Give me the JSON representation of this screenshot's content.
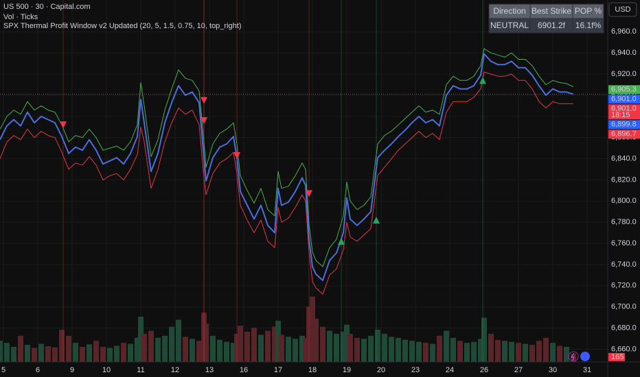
{
  "chart_data": {
    "type": "line",
    "title": "US 500 · 30 · Capital.com",
    "subtitle": "Vol · Ticks",
    "indicator": "SPX Thermal Profit Window v2 Updated (20, 5, 1.5, 0.75, 10, top_right)",
    "currency": "USD",
    "xlim": [
      -0.1,
      17.6
    ],
    "xticks": [
      {
        "value": 0,
        "label": "5"
      },
      {
        "value": 1,
        "label": "6"
      },
      {
        "value": 2,
        "label": "9"
      },
      {
        "value": 3,
        "label": "10"
      },
      {
        "value": 4,
        "label": "11"
      },
      {
        "value": 5,
        "label": "12"
      },
      {
        "value": 6,
        "label": "13"
      },
      {
        "value": 7,
        "label": "16"
      },
      {
        "value": 8,
        "label": "17"
      },
      {
        "value": 9,
        "label": "18"
      },
      {
        "value": 10,
        "label": "19"
      },
      {
        "value": 11,
        "label": "20"
      },
      {
        "value": 12,
        "label": "23"
      },
      {
        "value": 13,
        "label": "24"
      },
      {
        "value": 14,
        "label": "26"
      },
      {
        "value": 15,
        "label": "27"
      },
      {
        "value": 16,
        "label": "30"
      },
      {
        "value": 17,
        "label": "31"
      }
    ],
    "ylim": [
      6648,
      6990
    ],
    "yticks": [
      {
        "value": 6660,
        "label": "6,660.0"
      },
      {
        "value": 6680,
        "label": "6,680.0"
      },
      {
        "value": 6700,
        "label": "6,700.0"
      },
      {
        "value": 6720,
        "label": "6,720.0"
      },
      {
        "value": 6740,
        "label": "6,740.0"
      },
      {
        "value": 6760,
        "label": "6,760.0"
      },
      {
        "value": 6780,
        "label": "6,780.0"
      },
      {
        "value": 6800,
        "label": "6,800.0"
      },
      {
        "value": 6820,
        "label": "6,820.0"
      },
      {
        "value": 6840,
        "label": "6,840.0"
      },
      {
        "value": 6860,
        "label": "6,860.0"
      },
      {
        "value": 6880,
        "label": "6,880.0"
      },
      {
        "value": 6900,
        "label": "6,900.0"
      },
      {
        "value": 6920,
        "label": "6,920.0"
      },
      {
        "value": 6940,
        "label": "6,940.0"
      },
      {
        "value": 6960,
        "label": "6,960.0"
      }
    ],
    "grid": true,
    "x": [
      -0.1,
      0.1,
      0.3,
      0.5,
      0.7,
      0.9,
      1.1,
      1.3,
      1.5,
      1.7,
      1.9,
      2.1,
      2.3,
      2.5,
      2.7,
      2.9,
      3.1,
      3.3,
      3.5,
      3.7,
      3.9,
      4.0,
      4.1,
      4.3,
      4.5,
      4.7,
      4.9,
      5.1,
      5.3,
      5.5,
      5.7,
      5.84,
      5.9,
      6.1,
      6.3,
      6.5,
      6.7,
      6.8,
      6.9,
      7.1,
      7.3,
      7.5,
      7.7,
      7.9,
      8.0,
      8.1,
      8.3,
      8.5,
      8.7,
      8.8,
      8.9,
      9.0,
      9.1,
      9.3,
      9.5,
      9.7,
      9.9,
      10.0,
      10.1,
      10.3,
      10.5,
      10.7,
      10.9,
      11.1,
      11.3,
      11.5,
      11.7,
      11.9,
      12.1,
      12.3,
      12.5,
      12.7,
      12.9,
      13.1,
      13.3,
      13.5,
      13.7,
      13.9,
      14.0,
      14.2,
      14.4,
      14.6,
      14.8,
      15.0,
      15.2,
      15.4,
      15.6,
      15.8,
      16.0,
      16.2,
      16.4,
      16.6
    ],
    "series": [
      {
        "color": "#4caf50",
        "values": [
          6868,
          6880,
          6886,
          6882,
          6894,
          6886,
          6890,
          6886,
          6884,
          6872,
          6856,
          6862,
          6860,
          6868,
          6860,
          6848,
          6850,
          6852,
          6848,
          6856,
          6872,
          6912,
          6890,
          6842,
          6858,
          6886,
          6906,
          6924,
          6916,
          6914,
          6904,
          6856,
          6832,
          6854,
          6864,
          6868,
          6874,
          6854,
          6824,
          6810,
          6798,
          6812,
          6792,
          6786,
          6828,
          6812,
          6814,
          6824,
          6836,
          6830,
          6778,
          6752,
          6744,
          6738,
          6756,
          6764,
          6786,
          6818,
          6800,
          6792,
          6796,
          6804,
          6854,
          6862,
          6866,
          6872,
          6878,
          6884,
          6890,
          6884,
          6886,
          6882,
          6910,
          6918,
          6914,
          6914,
          6918,
          6928,
          6944,
          6940,
          6938,
          6936,
          6940,
          6934,
          6934,
          6928,
          6918,
          6910,
          6914,
          6912,
          6911,
          6908
        ]
      },
      {
        "color": "#e0394b",
        "values": [
          6840,
          6856,
          6862,
          6858,
          6868,
          6860,
          6866,
          6862,
          6860,
          6846,
          6830,
          6836,
          6834,
          6842,
          6834,
          6820,
          6824,
          6826,
          6820,
          6830,
          6844,
          6870,
          6856,
          6812,
          6830,
          6856,
          6874,
          6888,
          6882,
          6886,
          6872,
          6822,
          6806,
          6826,
          6836,
          6840,
          6846,
          6826,
          6796,
          6782,
          6770,
          6782,
          6762,
          6756,
          6794,
          6780,
          6784,
          6794,
          6806,
          6800,
          6752,
          6724,
          6718,
          6712,
          6730,
          6736,
          6754,
          6780,
          6766,
          6762,
          6768,
          6774,
          6824,
          6832,
          6840,
          6848,
          6854,
          6860,
          6866,
          6860,
          6864,
          6858,
          6884,
          6894,
          6894,
          6894,
          6898,
          6906,
          6922,
          6920,
          6918,
          6918,
          6920,
          6914,
          6914,
          6906,
          6894,
          6888,
          6894,
          6892,
          6892,
          6892
        ]
      },
      {
        "color": "#4a6fe0",
        "values": [
          6858,
          6871,
          6877,
          6871,
          6884,
          6874,
          6880,
          6877,
          6874,
          6861,
          6845,
          6851,
          6848,
          6858,
          6848,
          6835,
          6838,
          6841,
          6835,
          6845,
          6861,
          6896,
          6874,
          6828,
          6845,
          6874,
          6893,
          6909,
          6900,
          6903,
          6893,
          6841,
          6819,
          6841,
          6851,
          6854,
          6861,
          6841,
          6809,
          6796,
          6783,
          6796,
          6777,
          6770,
          6812,
          6796,
          6799,
          6809,
          6822,
          6815,
          6764,
          6738,
          6731,
          6725,
          6744,
          6751,
          6770,
          6803,
          6783,
          6777,
          6783,
          6790,
          6841,
          6848,
          6854,
          6861,
          6867,
          6874,
          6880,
          6874,
          6877,
          6871,
          6900,
          6909,
          6906,
          6906,
          6909,
          6919,
          6939,
          6932,
          6929,
          6929,
          6932,
          6926,
          6926,
          6919,
          6909,
          6900,
          6906,
          6903,
          6903,
          6901
        ]
      }
    ],
    "volume": {
      "lim": [
        0,
        1500
      ],
      "up_color": "#1f4a38",
      "down_color": "#5a2528",
      "values": [
        420,
        380,
        300,
        520,
        340,
        280,
        360,
        310,
        290,
        640,
        520,
        380,
        300,
        350,
        420,
        300,
        280,
        320,
        380,
        360,
        480,
        900,
        560,
        620,
        480,
        520,
        700,
        840,
        500,
        460,
        420,
        980,
        760,
        520,
        440,
        400,
        380,
        560,
        720,
        600,
        680,
        540,
        620,
        700,
        820,
        540,
        500,
        460,
        520,
        480,
        1100,
        1300,
        860,
        700,
        620,
        560,
        600,
        740,
        560,
        480,
        460,
        520,
        640,
        560,
        500,
        480,
        440,
        420,
        400,
        380,
        360,
        520,
        620,
        480,
        420,
        380,
        400,
        460,
        880,
        560,
        440,
        420,
        400,
        380,
        360,
        340,
        420,
        480,
        380,
        320,
        300,
        165
      ]
    },
    "sell_signals": {
      "color": "#f23645",
      "x": [
        1.74,
        5.84,
        5.84,
        6.8,
        8.9
      ],
      "values": [
        6872,
        6895,
        6876,
        6843,
        6807
      ]
    },
    "buy_signals": {
      "color": "#26a65b",
      "x": [
        9.84,
        10.86,
        13.96
      ],
      "values": [
        6762,
        6782,
        6914
      ]
    },
    "price_labels": [
      {
        "value": 6905.3,
        "label": "6,905.3",
        "color": "#4caf50"
      },
      {
        "value": 6901.0,
        "label": "6,901.0",
        "color": "#2962ff"
      },
      {
        "value": 6901.0,
        "label": "6,901.0",
        "time": "18:15",
        "color": "#f23645"
      },
      {
        "value": 6899.8,
        "label": "6,899.8",
        "color": "#2962ff"
      },
      {
        "value": 6896.7,
        "label": "6,896.7",
        "color": "#f23645"
      }
    ],
    "table": {
      "header": [
        "Direction",
        "Best Strike",
        "POP %"
      ],
      "row": [
        "NEUTRAL",
        "6901.2f",
        "16.1f%"
      ]
    }
  }
}
